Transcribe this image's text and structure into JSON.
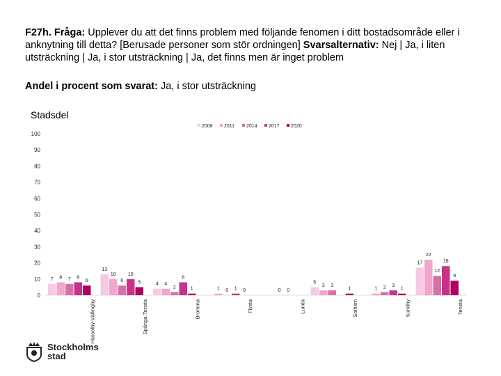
{
  "header": {
    "question_label": "F27h. Fråga:",
    "question_text": " Upplever du att det finns problem med följande fenomen i ditt bostadsområde eller i anknytning till detta? [Berusade personer som stör ordningen] ",
    "alternatives_label": "Svarsalternativ:",
    "alternatives_text": " Nej | Ja, i liten utsträckning | Ja, i stor utsträckning | Ja, det finns men är inget problem",
    "share_label": "Andel i procent som svarat:",
    "share_text": " Ja, i stor utsträckning",
    "section": "Stadsdel"
  },
  "logo": {
    "line1": "Stockholms",
    "line2": "stad"
  },
  "chart_data": {
    "type": "bar",
    "title": "Stadsdel",
    "ylim": [
      0,
      100
    ],
    "yticks": [
      0,
      10,
      20,
      30,
      40,
      50,
      60,
      70,
      80,
      90,
      100
    ],
    "legend_position": "top-right",
    "categories": [
      "Hässelby-Vällingby",
      "Spånga-Tensta",
      "Bromma",
      "Flysta",
      "Lunda",
      "Solhem",
      "Sundby",
      "Tensta"
    ],
    "category_labels": [
      "Hässelby-Vällingby",
      "Spånga-Tensta",
      "Bromma",
      "Flysta",
      "Lunda",
      "Solhem",
      "Sundby",
      "Tensta"
    ],
    "series": [
      {
        "name": "2008",
        "color": "#f8c9e2",
        "values": [
          7,
          13,
          4,
          null,
          null,
          5,
          null,
          17
        ]
      },
      {
        "name": "2011",
        "color": "#f0a6cd",
        "values": [
          8,
          10,
          4,
          1,
          null,
          3,
          1,
          22
        ]
      },
      {
        "name": "2014",
        "color": "#d86fa8",
        "values": [
          7,
          6,
          2,
          0,
          0,
          3,
          2,
          12
        ]
      },
      {
        "name": "2017",
        "color": "#c8338a",
        "values": [
          8,
          10,
          8,
          1,
          0,
          null,
          3,
          18
        ]
      },
      {
        "name": "2020",
        "color": "#b0005f",
        "values": [
          6,
          5,
          1,
          0,
          null,
          1,
          1,
          9
        ]
      }
    ]
  }
}
